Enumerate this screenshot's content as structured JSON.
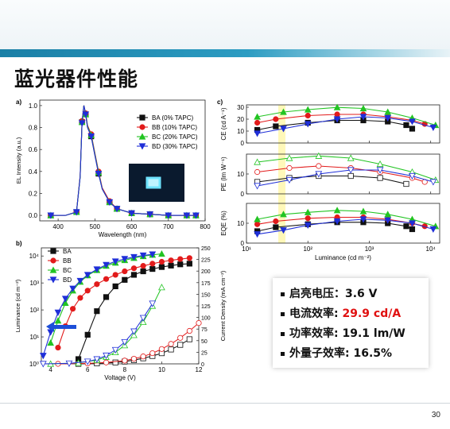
{
  "slide": {
    "title": "蓝光器件性能",
    "page_number": "30"
  },
  "summary": [
    {
      "label": "启亮电压：",
      "value": "3.6 V",
      "highlight": false
    },
    {
      "label": "电流效率: ",
      "value": "29.9 cd/A",
      "highlight": true
    },
    {
      "label": "功率效率: ",
      "value": "19.1 lm/W",
      "highlight": false
    },
    {
      "label": "外量子效率: ",
      "value": "16.5%",
      "highlight": false
    }
  ],
  "chart_data": [
    {
      "panel": "a)",
      "type": "line",
      "xlabel": "Wavelength (nm)",
      "ylabel": "EL Intensity (a.u.)",
      "xlim": [
        350,
        800
      ],
      "ylim": [
        -0.05,
        1.05
      ],
      "xticks": [
        400,
        500,
        600,
        700,
        800
      ],
      "yticks": [
        0.0,
        0.2,
        0.4,
        0.6,
        0.8,
        1.0
      ],
      "ytick_labels": [
        "0.0",
        "0.2",
        "0.4",
        "0.6",
        "0.8",
        "1.0"
      ],
      "legend_position": "top-right",
      "x": [
        380,
        420,
        450,
        460,
        465,
        470,
        475,
        480,
        490,
        500,
        510,
        520,
        540,
        560,
        600,
        650,
        700,
        750,
        775
      ],
      "series": [
        {
          "name": "BA (0% TAPC)",
          "color": "#111111",
          "marker": "square",
          "values": [
            0.0,
            0.0,
            0.03,
            0.35,
            0.85,
            1.0,
            0.92,
            0.8,
            0.72,
            0.55,
            0.38,
            0.24,
            0.12,
            0.06,
            0.02,
            0.01,
            0.0,
            0.0,
            0.0
          ]
        },
        {
          "name": "BB (10% TAPC)",
          "color": "#e21b1b",
          "marker": "circle",
          "values": [
            0.0,
            0.0,
            0.03,
            0.36,
            0.86,
            1.0,
            0.93,
            0.82,
            0.74,
            0.57,
            0.4,
            0.25,
            0.13,
            0.06,
            0.02,
            0.01,
            0.0,
            0.0,
            0.0
          ]
        },
        {
          "name": "BC (20% TAPC)",
          "color": "#22c422",
          "marker": "triangle",
          "values": [
            0.0,
            0.0,
            0.03,
            0.35,
            0.85,
            1.0,
            0.92,
            0.81,
            0.73,
            0.56,
            0.39,
            0.24,
            0.12,
            0.06,
            0.02,
            0.01,
            0.0,
            0.0,
            0.0
          ]
        },
        {
          "name": "BD (30% TAPC)",
          "color": "#1f2fd8",
          "marker": "tri-down",
          "values": [
            0.0,
            0.0,
            0.03,
            0.35,
            0.84,
            1.0,
            0.92,
            0.8,
            0.72,
            0.55,
            0.38,
            0.24,
            0.12,
            0.06,
            0.02,
            0.01,
            0.0,
            0.0,
            0.0
          ]
        }
      ]
    },
    {
      "panel": "b)",
      "type": "line",
      "xlabel": "Voltage (V)",
      "ylabel": "Luminance (cd m⁻²)",
      "y2label": "Current Density (mA cm⁻²)",
      "xlim": [
        3.5,
        12
      ],
      "xticks": [
        4,
        6,
        8,
        10,
        12
      ],
      "ylim_log": [
        1,
        20000
      ],
      "yticks_log": [
        "10⁰",
        "10¹",
        "10²",
        "10³",
        "10⁴"
      ],
      "y2lim": [
        0,
        250
      ],
      "y2ticks": [
        0,
        25,
        50,
        75,
        100,
        125,
        150,
        175,
        200,
        225,
        250
      ],
      "legend_position": "top-left",
      "luminance": [
        {
          "name": "BA",
          "color": "#111111",
          "marker": "square",
          "x": [
            5.5,
            6.0,
            6.5,
            7.0,
            7.5,
            8.0,
            8.5,
            9.0,
            9.5,
            10.0,
            10.5,
            11.0,
            11.5
          ],
          "values": [
            1.5,
            12,
            90,
            300,
            750,
            1300,
            2000,
            2700,
            3300,
            3900,
            4400,
            4900,
            5200
          ]
        },
        {
          "name": "BB",
          "color": "#e21b1b",
          "marker": "circle",
          "x": [
            4.4,
            4.8,
            5.2,
            5.6,
            6.0,
            6.5,
            7.0,
            7.5,
            8.0,
            8.5,
            9.0,
            9.5,
            10.0,
            10.5,
            11.0,
            11.5
          ],
          "values": [
            4,
            25,
            110,
            280,
            520,
            900,
            1400,
            2000,
            2700,
            3500,
            4300,
            5200,
            6100,
            6900,
            7700,
            8400
          ]
        },
        {
          "name": "BC",
          "color": "#22c422",
          "marker": "triangle",
          "x": [
            4.0,
            4.4,
            4.8,
            5.2,
            5.6,
            6.0,
            6.5,
            7.0,
            7.5,
            8.0,
            8.5,
            9.0,
            9.5,
            10.0
          ],
          "values": [
            6,
            40,
            180,
            520,
            1100,
            1900,
            3000,
            4300,
            5600,
            7000,
            8400,
            9800,
            11000,
            12000
          ]
        },
        {
          "name": "BD",
          "color": "#1f2fd8",
          "marker": "tri-down",
          "x": [
            3.6,
            4.0,
            4.4,
            4.8,
            5.2,
            5.6,
            6.0,
            6.5,
            7.0,
            7.5,
            8.0,
            8.5,
            9.0,
            9.5
          ],
          "values": [
            2,
            15,
            80,
            260,
            620,
            1200,
            2000,
            3200,
            4700,
            6300,
            7800,
            9200,
            10500,
            11500
          ]
        }
      ],
      "current_density": [
        {
          "name": "BA",
          "color": "#111111",
          "x": [
            5.5,
            6.5,
            7.5,
            8.0,
            8.5,
            9.0,
            9.5,
            10.0,
            10.5,
            11.0,
            11.5
          ],
          "values": [
            0,
            1,
            3,
            5,
            8,
            12,
            17,
            23,
            31,
            41,
            53
          ]
        },
        {
          "name": "BB",
          "color": "#e21b1b",
          "x": [
            4.4,
            6.0,
            7.0,
            8.0,
            8.5,
            9.0,
            9.5,
            10.0,
            10.5,
            11.0,
            11.5,
            12.0
          ],
          "values": [
            0,
            1,
            3,
            7,
            11,
            16,
            23,
            32,
            43,
            56,
            71,
            88
          ]
        },
        {
          "name": "BC",
          "color": "#22c422",
          "x": [
            4.0,
            5.5,
            6.5,
            7.0,
            7.5,
            8.0,
            8.5,
            9.0,
            9.5,
            10.0
          ],
          "values": [
            0,
            2,
            8,
            15,
            25,
            40,
            62,
            90,
            125,
            165
          ]
        },
        {
          "name": "BD",
          "color": "#1f2fd8",
          "x": [
            3.6,
            5.0,
            6.0,
            6.5,
            7.0,
            7.5,
            8.0,
            8.5,
            9.0,
            9.5
          ],
          "values": [
            0,
            1,
            5,
            10,
            18,
            30,
            47,
            70,
            99,
            130
          ]
        }
      ]
    },
    {
      "panel": "c)",
      "type": "line",
      "xlabel": "Luminance (cd m⁻²)",
      "xscale": "log",
      "xlim": [
        10,
        14000
      ],
      "xticks": [
        "10¹",
        "10²",
        "10³",
        "10⁴"
      ],
      "subplots": [
        {
          "ylabel": "CE (cd A⁻¹)",
          "ylim": [
            0,
            32
          ],
          "yticks": [
            0,
            10,
            20,
            30
          ],
          "series": [
            {
              "name": "BA",
              "color": "#111111",
              "x": [
                15,
                30,
                100,
                300,
                800,
                2000,
                4000,
                5000
              ],
              "values": [
                11,
                14,
                17,
                19,
                19,
                18,
                15,
                12
              ]
            },
            {
              "name": "BB",
              "color": "#e21b1b",
              "x": [
                15,
                30,
                100,
                300,
                800,
                2000,
                5000,
                8000
              ],
              "values": [
                17,
                20,
                23,
                24,
                24,
                22,
                19,
                16
              ]
            },
            {
              "name": "BC",
              "color": "#22c422",
              "x": [
                15,
                40,
                100,
                300,
                800,
                2000,
                5000,
                12000
              ],
              "values": [
                22,
                26,
                28,
                29.9,
                29,
                26,
                21,
                15
              ]
            },
            {
              "name": "BD",
              "color": "#1f2fd8",
              "x": [
                15,
                40,
                100,
                300,
                800,
                2000,
                5000,
                11000
              ],
              "values": [
                8,
                12,
                16,
                20,
                22,
                21,
                18,
                13
              ]
            }
          ]
        },
        {
          "ylabel": "PE (lm W⁻¹)",
          "ylim": [
            0,
            20
          ],
          "yticks": [
            0,
            10
          ],
          "series": [
            {
              "name": "BA",
              "color": "#111111",
              "x": [
                15,
                50,
                150,
                500,
                1500,
                4000
              ],
              "values": [
                6,
                8,
                9,
                9,
                8,
                5
              ]
            },
            {
              "name": "BB",
              "color": "#e21b1b",
              "x": [
                15,
                50,
                150,
                500,
                1500,
                5000,
                8000
              ],
              "values": [
                11,
                13,
                14,
                13,
                11,
                8,
                6
              ]
            },
            {
              "name": "BC",
              "color": "#22c422",
              "x": [
                15,
                50,
                150,
                500,
                1500,
                5000,
                12000
              ],
              "values": [
                16,
                18,
                19.1,
                18,
                15,
                11,
                7
              ]
            },
            {
              "name": "BD",
              "color": "#1f2fd8",
              "x": [
                15,
                50,
                150,
                500,
                1500,
                5000,
                11000
              ],
              "values": [
                4,
                7,
                10,
                12,
                12,
                9,
                6
              ]
            }
          ]
        },
        {
          "ylabel": "EQE (%)",
          "ylim": [
            0,
            20
          ],
          "yticks": [
            0,
            10
          ],
          "series": [
            {
              "name": "BA",
              "color": "#111111",
              "x": [
                15,
                30,
                100,
                300,
                800,
                2000,
                4000,
                5000
              ],
              "values": [
                6,
                8,
                9.5,
                10.5,
                10.5,
                10,
                8.5,
                7
              ]
            },
            {
              "name": "BB",
              "color": "#e21b1b",
              "x": [
                15,
                30,
                100,
                300,
                800,
                2000,
                5000,
                8000
              ],
              "values": [
                9.5,
                11,
                12.5,
                13,
                13,
                12,
                10,
                8.5
              ]
            },
            {
              "name": "BC",
              "color": "#22c422",
              "x": [
                15,
                40,
                100,
                300,
                800,
                2000,
                5000,
                12000
              ],
              "values": [
                12,
                14.5,
                15.5,
                16.5,
                16,
                14.5,
                12,
                8.5
              ]
            },
            {
              "name": "BD",
              "color": "#1f2fd8",
              "x": [
                15,
                40,
                100,
                300,
                800,
                2000,
                5000,
                11000
              ],
              "values": [
                4.5,
                6.5,
                9,
                11,
                12,
                11.5,
                10,
                7
              ]
            }
          ]
        }
      ]
    }
  ]
}
